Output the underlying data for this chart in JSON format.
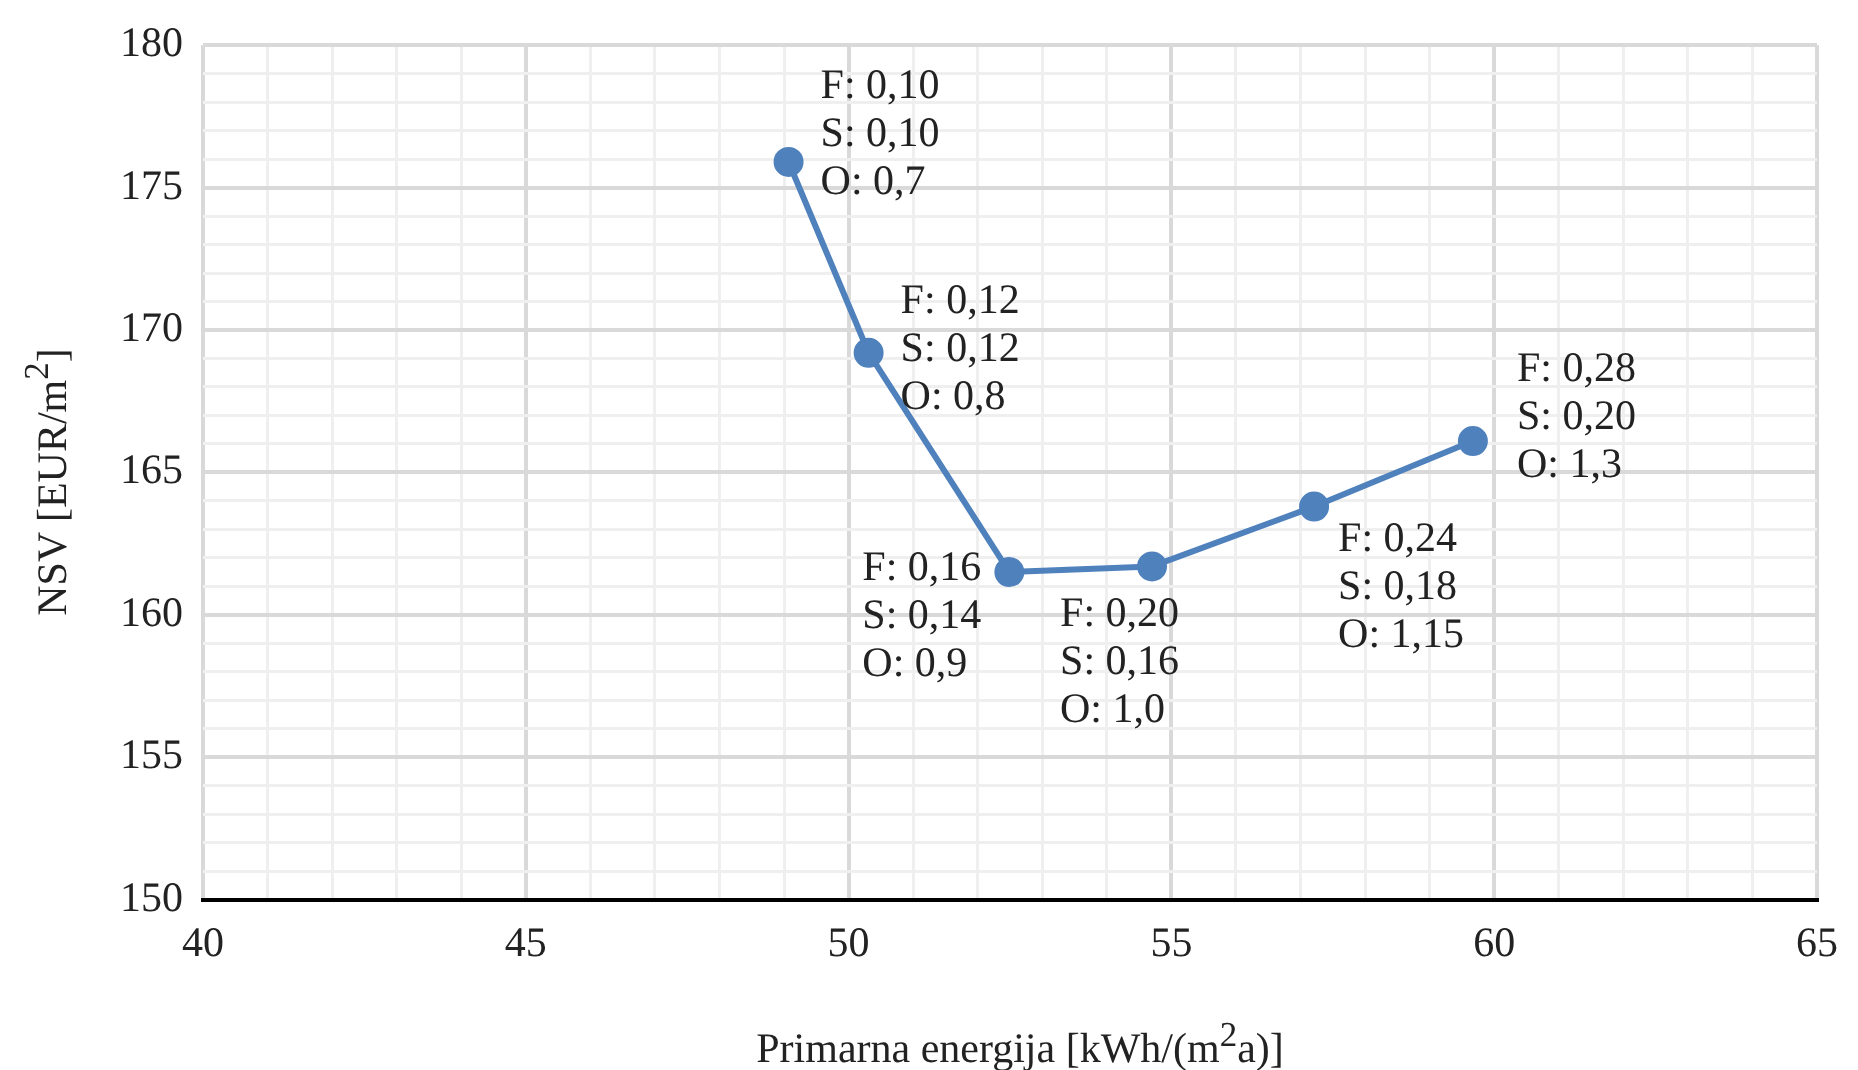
{
  "chart_data": {
    "type": "line",
    "xlabel": "Primarna energija [kWh/(m$^{2}$a)]",
    "ylabel": "NSV [EUR/m$^{2}$]",
    "x": [
      49.07,
      50.31,
      52.49,
      54.7,
      57.21,
      59.67
    ],
    "series": [
      {
        "color": "#4f81bd",
        "values": [
          175.9,
          169.2,
          161.5,
          161.7,
          163.8,
          166.1
        ]
      }
    ],
    "xlim": [
      40,
      65
    ],
    "xticks": [
      40,
      {
        "value": 41,
        "label": null
      },
      {
        "value": 42,
        "label": null
      },
      {
        "value": 43,
        "label": null
      },
      {
        "value": 44,
        "label": null
      },
      45,
      {
        "value": 46,
        "label": null
      },
      {
        "value": 47,
        "label": null
      },
      {
        "value": 48,
        "label": null
      },
      {
        "value": 49,
        "label": null
      },
      50,
      {
        "value": 51,
        "label": null
      },
      {
        "value": 52,
        "label": null
      },
      {
        "value": 53,
        "label": null
      },
      {
        "value": 54,
        "label": null
      },
      55,
      {
        "value": 56,
        "label": null
      },
      {
        "value": 57,
        "label": null
      },
      {
        "value": 58,
        "label": null
      },
      {
        "value": 59,
        "label": null
      },
      60,
      {
        "value": 61,
        "label": null
      },
      {
        "value": 62,
        "label": null
      },
      {
        "value": 63,
        "label": null
      },
      {
        "value": 64,
        "label": null
      },
      65
    ],
    "ylim": [
      150,
      180
    ],
    "yticks": [
      150,
      {
        "value": 151,
        "label": null
      },
      {
        "value": 152,
        "label": null
      },
      {
        "value": 153,
        "label": null
      },
      {
        "value": 154,
        "label": null
      },
      155,
      {
        "value": 156,
        "label": null
      },
      {
        "value": 157,
        "label": null
      },
      {
        "value": 158,
        "label": null
      },
      {
        "value": 159,
        "label": null
      },
      160,
      {
        "value": 161,
        "label": null
      },
      {
        "value": 162,
        "label": null
      },
      {
        "value": 163,
        "label": null
      },
      {
        "value": 164,
        "label": null
      },
      165,
      {
        "value": 166,
        "label": null
      },
      {
        "value": 167,
        "label": null
      },
      {
        "value": 168,
        "label": null
      },
      {
        "value": 169,
        "label": null
      },
      170,
      {
        "value": 171,
        "label": null
      },
      {
        "value": 172,
        "label": null
      },
      {
        "value": 173,
        "label": null
      },
      {
        "value": 174,
        "label": null
      },
      175,
      {
        "value": 176,
        "label": null
      },
      {
        "value": 177,
        "label": null
      },
      {
        "value": 178,
        "label": null
      },
      {
        "value": 179,
        "label": null
      },
      180
    ],
    "annotations": [
      {
        "text": "F: 0,10\nS: 0,10\nO: 0,7",
        "x": 49.07,
        "y": 175.9
      },
      {
        "text": "F: 0,12\nS: 0,12\nO: 0,8",
        "x": 50.31,
        "y": 169.2
      },
      {
        "text": "F: 0,16\nS: 0,14\nO: 0,9",
        "x": 52.49,
        "y": 161.5
      },
      {
        "text": "F: 0,20\nS: 0,16\nO: 1,0",
        "x": 54.7,
        "y": 161.7
      },
      {
        "text": "F: 0,24\nS: 0,18\nO: 1,15",
        "x": 57.21,
        "y": 163.8
      },
      {
        "text": "F: 0,28\nS: 0,20\nO: 1,3",
        "x": 59.67,
        "y": 166.1
      }
    ],
    "grid": true,
    "marker": "circle",
    "line_style": "solid",
    "legend": false
  }
}
